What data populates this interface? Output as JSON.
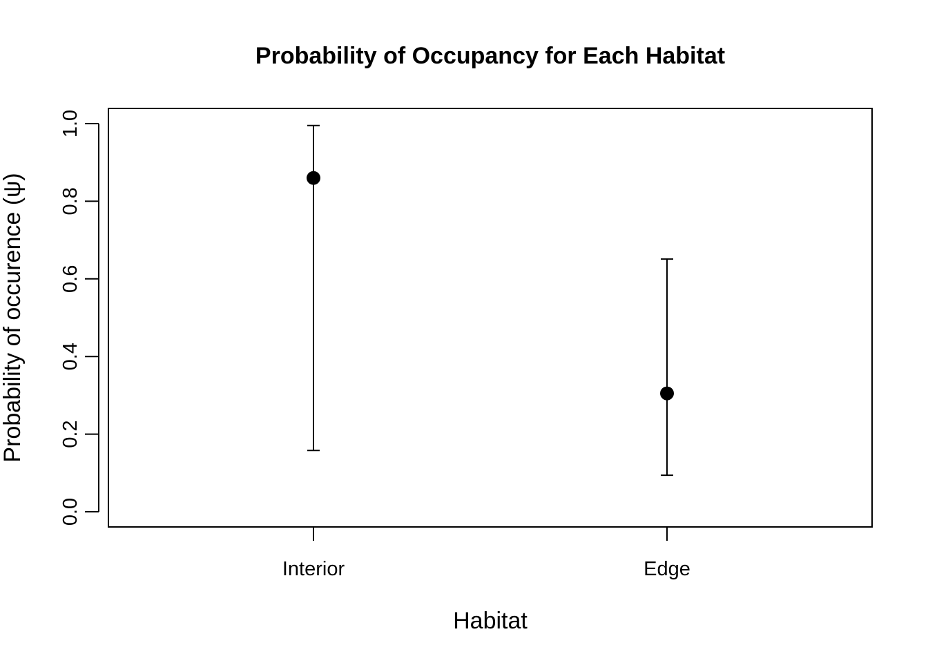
{
  "chart_data": {
    "type": "scatter",
    "title": "Probability of Occupancy for Each Habitat",
    "xlabel": "Habitat",
    "ylabel": "Probability of occurence (ψ)",
    "categories": [
      "Interior",
      "Edge"
    ],
    "series": [
      {
        "values": [
          0.86,
          0.305
        ],
        "lower": [
          0.158,
          0.094
        ],
        "upper": [
          0.995,
          0.651
        ]
      }
    ],
    "ylim": [
      0.0,
      1.0
    ],
    "yticks": [
      "0.0",
      "0.2",
      "0.4",
      "0.6",
      "0.8",
      "1.0"
    ],
    "grid": false,
    "legend": "none",
    "colors": {
      "points": "#000000",
      "error_bars": "#000000",
      "frame": "#000000"
    }
  }
}
